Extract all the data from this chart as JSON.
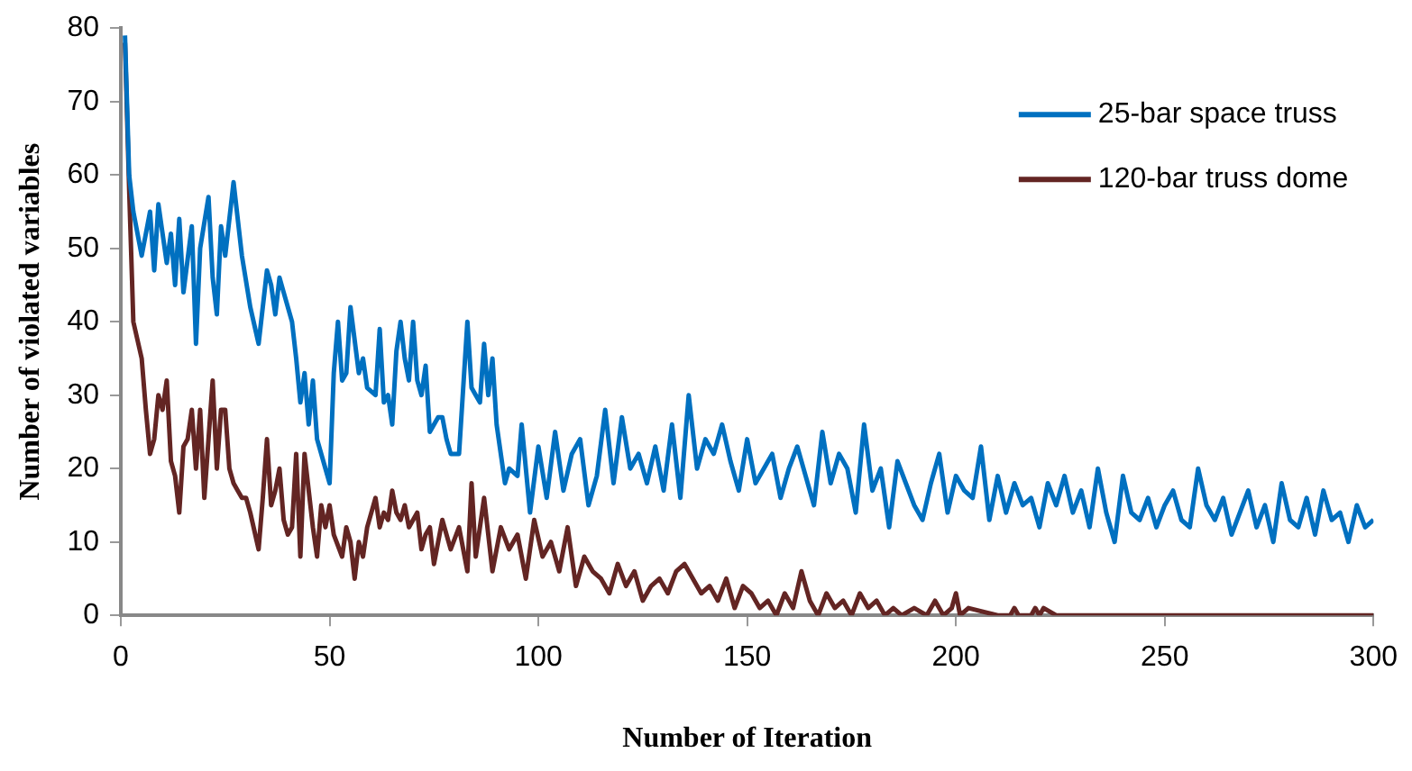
{
  "chart_data": {
    "type": "line",
    "xlabel": "Number of Iteration",
    "ylabel": "Number of violated variables",
    "xlim": [
      0,
      300
    ],
    "xticks": [
      0,
      50,
      100,
      150,
      200,
      250,
      300
    ],
    "ylim": [
      0,
      80
    ],
    "yticks": [
      0,
      10,
      20,
      30,
      40,
      50,
      60,
      70,
      80
    ],
    "grid": false,
    "legend": "top right",
    "marker": "none",
    "line_style": "solid",
    "series": [
      {
        "name": "25-bar space truss",
        "color": "#0070c0",
        "x": [
          1,
          2,
          3,
          5,
          6,
          7,
          8,
          9,
          11,
          12,
          13,
          14,
          15,
          17,
          18,
          19,
          21,
          22,
          23,
          24,
          25,
          27,
          29,
          31,
          33,
          35,
          36,
          37,
          38,
          39,
          41,
          42,
          43,
          44,
          45,
          46,
          47,
          49,
          50,
          51,
          52,
          53,
          54,
          55,
          57,
          58,
          59,
          61,
          62,
          63,
          64,
          65,
          66,
          67,
          68,
          69,
          70,
          71,
          72,
          73,
          74,
          76,
          77,
          78,
          79,
          81,
          83,
          84,
          85,
          86,
          87,
          88,
          89,
          90,
          92,
          93,
          95,
          96,
          97,
          98,
          100,
          102,
          104,
          106,
          108,
          110,
          112,
          114,
          116,
          118,
          120,
          122,
          124,
          126,
          128,
          130,
          132,
          134,
          136,
          138,
          140,
          142,
          144,
          146,
          148,
          150,
          152,
          154,
          156,
          158,
          160,
          162,
          164,
          166,
          168,
          170,
          172,
          174,
          176,
          178,
          180,
          182,
          184,
          186,
          188,
          190,
          192,
          194,
          196,
          198,
          200,
          202,
          204,
          206,
          208,
          210,
          212,
          214,
          216,
          218,
          220,
          222,
          224,
          226,
          228,
          230,
          232,
          234,
          236,
          238,
          240,
          242,
          244,
          246,
          248,
          250,
          252,
          254,
          256,
          258,
          260,
          262,
          264,
          266,
          268,
          270,
          272,
          274,
          276,
          278,
          280,
          282,
          284,
          286,
          288,
          290,
          292,
          294,
          296,
          298,
          300
        ],
        "values": [
          79,
          60,
          55,
          49,
          52,
          55,
          47,
          56,
          48,
          52,
          45,
          54,
          44,
          53,
          37,
          50,
          57,
          46,
          41,
          53,
          49,
          59,
          49,
          42,
          37,
          47,
          45,
          41,
          46,
          44,
          40,
          35,
          29,
          33,
          26,
          32,
          24,
          20,
          18,
          33,
          40,
          32,
          33,
          42,
          33,
          35,
          31,
          30,
          39,
          29,
          30,
          26,
          36,
          40,
          35,
          32,
          40,
          32,
          30,
          34,
          25,
          27,
          27,
          24,
          22,
          22,
          40,
          31,
          30,
          29,
          37,
          30,
          35,
          26,
          18,
          20,
          19,
          26,
          20,
          14,
          23,
          16,
          25,
          17,
          22,
          24,
          15,
          19,
          28,
          18,
          27,
          20,
          22,
          18,
          23,
          17,
          26,
          16,
          30,
          20,
          24,
          22,
          26,
          21,
          17,
          24,
          18,
          20,
          22,
          16,
          20,
          23,
          19,
          15,
          25,
          18,
          22,
          20,
          14,
          26,
          17,
          20,
          12,
          21,
          18,
          15,
          13,
          18,
          22,
          14,
          19,
          17,
          16,
          23,
          13,
          19,
          14,
          18,
          15,
          16,
          12,
          18,
          15,
          19,
          14,
          17,
          12,
          20,
          14,
          10,
          19,
          14,
          13,
          16,
          12,
          15,
          17,
          13,
          12,
          20,
          15,
          13,
          16,
          11,
          14,
          17,
          12,
          15,
          10,
          18,
          13,
          12,
          16,
          11,
          17,
          13,
          14,
          10,
          15,
          12,
          13
        ]
      },
      {
        "name": "120-bar truss dome",
        "color": "#632523",
        "x": [
          1,
          2,
          3,
          5,
          6,
          7,
          8,
          9,
          10,
          11,
          12,
          13,
          14,
          15,
          16,
          17,
          18,
          19,
          20,
          21,
          22,
          23,
          24,
          25,
          26,
          27,
          28,
          29,
          30,
          31,
          33,
          34,
          35,
          36,
          37,
          38,
          39,
          40,
          41,
          42,
          43,
          44,
          45,
          46,
          47,
          48,
          49,
          50,
          51,
          53,
          54,
          55,
          56,
          57,
          58,
          59,
          60,
          61,
          62,
          63,
          64,
          65,
          66,
          67,
          68,
          69,
          71,
          72,
          73,
          74,
          75,
          77,
          79,
          81,
          83,
          84,
          85,
          87,
          89,
          91,
          93,
          95,
          97,
          99,
          101,
          103,
          105,
          107,
          109,
          111,
          113,
          115,
          117,
          119,
          121,
          123,
          125,
          127,
          129,
          131,
          133,
          135,
          137,
          139,
          141,
          143,
          145,
          147,
          149,
          151,
          153,
          155,
          157,
          159,
          161,
          163,
          165,
          167,
          169,
          171,
          173,
          175,
          177,
          179,
          181,
          183,
          185,
          187,
          190,
          193,
          195,
          197,
          199,
          200,
          201,
          203,
          210,
          213,
          214,
          215,
          218,
          219,
          220,
          221,
          224,
          240,
          260,
          280,
          300
        ],
        "values": [
          78,
          58,
          40,
          35,
          28,
          22,
          24,
          30,
          28,
          32,
          21,
          19,
          14,
          23,
          24,
          28,
          20,
          28,
          16,
          24,
          32,
          20,
          28,
          28,
          20,
          18,
          17,
          16,
          16,
          14,
          9,
          16,
          24,
          15,
          17,
          20,
          13,
          11,
          12,
          22,
          8,
          22,
          17,
          12,
          8,
          15,
          12,
          15,
          11,
          8,
          12,
          10,
          5,
          10,
          8,
          12,
          14,
          16,
          12,
          14,
          13,
          17,
          14,
          13,
          15,
          12,
          14,
          9,
          11,
          12,
          7,
          13,
          9,
          12,
          6,
          18,
          8,
          16,
          6,
          12,
          9,
          11,
          5,
          13,
          8,
          10,
          6,
          12,
          4,
          8,
          6,
          5,
          3,
          7,
          4,
          6,
          2,
          4,
          5,
          3,
          6,
          7,
          5,
          3,
          4,
          2,
          5,
          1,
          4,
          3,
          1,
          2,
          0,
          3,
          1,
          6,
          2,
          0,
          3,
          1,
          2,
          0,
          3,
          1,
          2,
          0,
          1,
          0,
          1,
          0,
          2,
          0,
          1,
          3,
          0,
          1,
          0,
          0,
          1,
          0,
          0,
          1,
          0,
          1,
          0,
          0,
          0,
          0,
          0
        ]
      }
    ]
  }
}
